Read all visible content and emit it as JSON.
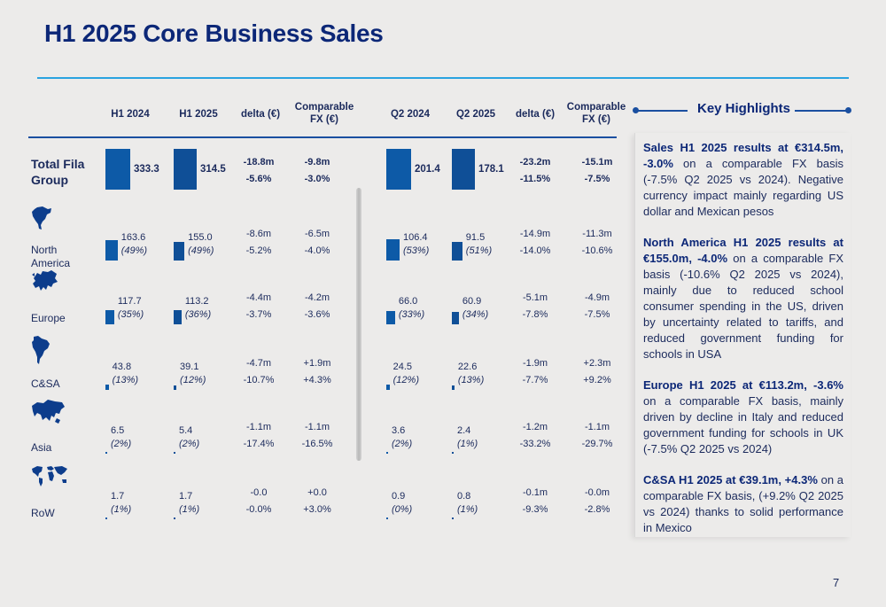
{
  "title": "H1 2025 Core Business Sales",
  "headers": {
    "h1_2024": "H1 2024",
    "h1_2025": "H1 2025",
    "delta_h1": "delta (€)",
    "comp_fx_h1": [
      "Comparable",
      "FX (€)"
    ],
    "q2_2024": "Q2 2024",
    "q2_2025": "Q2 2025",
    "delta_q2": "delta (€)",
    "comp_fx_q2": [
      "Comparable",
      "FX (€)"
    ]
  },
  "key_highlights_title": "Key Highlights",
  "highlights": [
    {
      "bold": "Sales H1 2025 results at €314.5m, -3.0%",
      "text": " on a comparable FX basis (-7.5% Q2 2025 vs 2024). Negative currency impact mainly regarding US dollar and Mexican pesos"
    },
    {
      "bold": "North America H1 2025 results at €155.0m, -4.0%",
      "text": " on a comparable FX basis (-10.6% Q2 2025 vs 2024), mainly due to reduced school consumer spending in the US, driven by uncertainty related to tariffs, and reduced government funding for schools in USA"
    },
    {
      "bold": "Europe H1 2025 at €113.2m, -3.6%",
      "text": " on a comparable FX basis, mainly driven by decline in Italy and reduced government funding for schools in  UK (-7.5% Q2 2025 vs 2024)"
    },
    {
      "bold": "C&SA H1 2025 at €39.1m, +4.3%",
      "text": " on a comparable FX basis, (+9.2% Q2 2025 vs 2024) thanks to solid performance in Mexico"
    }
  ],
  "page_number": "7",
  "colors": {
    "bar": "#0d5aa7",
    "title": "#0c2777",
    "accent_rule": "#2aa3e0"
  },
  "chart_data": {
    "type": "bar",
    "categories": [
      "Total Fila Group",
      "North America",
      "Europe",
      "C&SA",
      "Asia",
      "RoW"
    ],
    "icons": [
      null,
      "north-america-map-icon",
      "europe-map-icon",
      "south-america-map-icon",
      "asia-map-icon",
      "world-map-icon"
    ],
    "rows": [
      {
        "label": "Total Fila\nGroup",
        "h1_2024": 333.3,
        "h1_2024_txt": "333.3",
        "h1_2024_share": "",
        "h1_2025": 314.5,
        "h1_2025_txt": "314.5",
        "h1_2025_share": "",
        "delta_h1": [
          "-18.8m",
          "-5.6%"
        ],
        "comp_h1": [
          "-9.8m",
          "-3.0%"
        ],
        "q2_2024": 201.4,
        "q2_2024_txt": "201.4",
        "q2_2024_share": "",
        "q2_2025": 178.1,
        "q2_2025_txt": "178.1",
        "q2_2025_share": "",
        "delta_q2": [
          "-23.2m",
          "-11.5%"
        ],
        "comp_q2": [
          "-15.1m",
          "-7.5%"
        ]
      },
      {
        "label": "North\nAmerica",
        "h1_2024": 163.6,
        "h1_2024_txt": "163.6",
        "h1_2024_share": "(49%)",
        "h1_2025": 155.0,
        "h1_2025_txt": "155.0",
        "h1_2025_share": "(49%)",
        "delta_h1": [
          "-8.6m",
          "-5.2%"
        ],
        "comp_h1": [
          "-6.5m",
          "-4.0%"
        ],
        "q2_2024": 106.4,
        "q2_2024_txt": "106.4",
        "q2_2024_share": "(53%)",
        "q2_2025": 91.5,
        "q2_2025_txt": "91.5",
        "q2_2025_share": "(51%)",
        "delta_q2": [
          "-14.9m",
          "-14.0%"
        ],
        "comp_q2": [
          "-11.3m",
          "-10.6%"
        ]
      },
      {
        "label": "Europe",
        "h1_2024": 117.7,
        "h1_2024_txt": "117.7",
        "h1_2024_share": "(35%)",
        "h1_2025": 113.2,
        "h1_2025_txt": "113.2",
        "h1_2025_share": "(36%)",
        "delta_h1": [
          "-4.4m",
          "-3.7%"
        ],
        "comp_h1": [
          "-4.2m",
          "-3.6%"
        ],
        "q2_2024": 66.0,
        "q2_2024_txt": "66.0",
        "q2_2024_share": "(33%)",
        "q2_2025": 60.9,
        "q2_2025_txt": "60.9",
        "q2_2025_share": "(34%)",
        "delta_q2": [
          "-5.1m",
          "-7.8%"
        ],
        "comp_q2": [
          "-4.9m",
          "-7.5%"
        ]
      },
      {
        "label": "C&SA",
        "h1_2024": 43.8,
        "h1_2024_txt": "43.8",
        "h1_2024_share": "(13%)",
        "h1_2025": 39.1,
        "h1_2025_txt": "39.1",
        "h1_2025_share": "(12%)",
        "delta_h1": [
          "-4.7m",
          "-10.7%"
        ],
        "comp_h1": [
          "+1.9m",
          "+4.3%"
        ],
        "q2_2024": 24.5,
        "q2_2024_txt": "24.5",
        "q2_2024_share": "(12%)",
        "q2_2025": 22.6,
        "q2_2025_txt": "22.6",
        "q2_2025_share": "(13%)",
        "delta_q2": [
          "-1.9m",
          "-7.7%"
        ],
        "comp_q2": [
          "+2.3m",
          "+9.2%"
        ]
      },
      {
        "label": "Asia",
        "h1_2024": 6.5,
        "h1_2024_txt": "6.5",
        "h1_2024_share": "(2%)",
        "h1_2025": 5.4,
        "h1_2025_txt": "5.4",
        "h1_2025_share": "(2%)",
        "delta_h1": [
          "-1.1m",
          "-17.4%"
        ],
        "comp_h1": [
          "-1.1m",
          "-16.5%"
        ],
        "q2_2024": 3.6,
        "q2_2024_txt": "3.6",
        "q2_2024_share": "(2%)",
        "q2_2025": 2.4,
        "q2_2025_txt": "2.4",
        "q2_2025_share": "(1%)",
        "delta_q2": [
          "-1.2m",
          "-33.2%"
        ],
        "comp_q2": [
          "-1.1m",
          "-29.7%"
        ]
      },
      {
        "label": "RoW",
        "h1_2024": 1.7,
        "h1_2024_txt": "1.7",
        "h1_2024_share": "(1%)",
        "h1_2025": 1.7,
        "h1_2025_txt": "1.7",
        "h1_2025_share": "(1%)",
        "delta_h1": [
          "-0.0",
          "-0.0%"
        ],
        "comp_h1": [
          "+0.0",
          "+3.0%"
        ],
        "q2_2024": 0.9,
        "q2_2024_txt": "0.9",
        "q2_2024_share": "(0%)",
        "q2_2025": 0.8,
        "q2_2025_txt": "0.8",
        "q2_2025_share": "(1%)",
        "delta_q2": [
          "-0.1m",
          "-9.3%"
        ],
        "comp_q2": [
          "-0.0m",
          "-2.8%"
        ]
      }
    ]
  }
}
